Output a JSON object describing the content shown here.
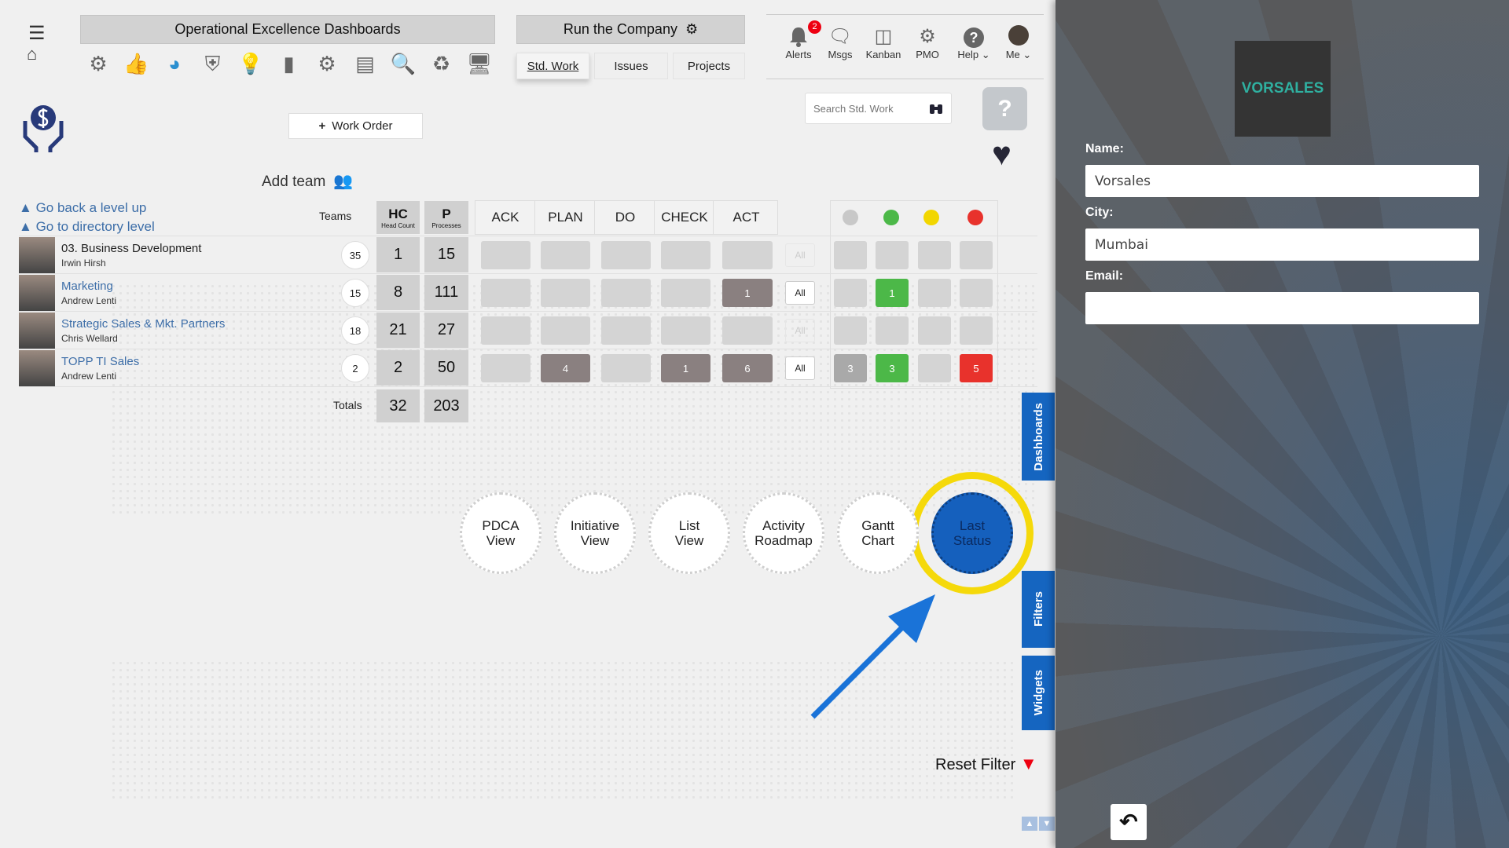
{
  "header": {
    "dashboards_title": "Operational Excellence Dashboards",
    "run_title": "Run the Company",
    "tabs": [
      {
        "label": "Std. Work",
        "active": true
      },
      {
        "label": "Issues"
      },
      {
        "label": "Projects"
      }
    ],
    "toolbar_icons": [
      "brain-gear-icon",
      "thumbs-up-icon",
      "pie-chart-icon",
      "shield-icon",
      "lightbulb-icon",
      "bar-chart-icon",
      "gear-chart-icon",
      "document-list-icon",
      "search-check-icon",
      "recycle-icon",
      "monitor-settings-icon"
    ],
    "nav": [
      {
        "label": "Alerts",
        "badge": "2",
        "icon": "bell-icon"
      },
      {
        "label": "Msgs",
        "icon": "message-icon"
      },
      {
        "label": "Kanban",
        "icon": "kanban-icon"
      },
      {
        "label": "PMO",
        "icon": "pmo-gear-icon"
      },
      {
        "label": "Help",
        "icon": "help-icon"
      },
      {
        "label": "Me",
        "icon": "avatar-icon"
      }
    ],
    "search_placeholder": "Search Std. Work"
  },
  "actions": {
    "work_order": "Work Order",
    "add_team": "Add team",
    "go_back": "Go back a level up",
    "go_directory": "Go to directory level",
    "reset_filter": "Reset Filter"
  },
  "table": {
    "teams_label": "Teams",
    "hc": "HC",
    "hc_sub": "Head Count",
    "p": "P",
    "p_sub": "Processes",
    "pdca": [
      "ACK",
      "PLAN",
      "DO",
      "CHECK",
      "ACT"
    ],
    "status_colors": [
      "#c8c8c8",
      "#4cb848",
      "#f2d600",
      "#e8322c"
    ],
    "all_label": "All",
    "rows": [
      {
        "name": "03. Business Development",
        "lead": "Irwin Hirsh",
        "teams": "35",
        "hc": "1",
        "p": "15",
        "pdca": [
          "",
          "",
          "",
          "",
          ""
        ],
        "status": [
          "",
          "",
          "",
          ""
        ],
        "link": false
      },
      {
        "name": "Marketing",
        "lead": "Andrew Lenti",
        "teams": "15",
        "hc": "8",
        "p": "111",
        "pdca": [
          "",
          "",
          "",
          "",
          "1"
        ],
        "status": [
          "",
          "1",
          "",
          ""
        ],
        "link": true
      },
      {
        "name": "Strategic Sales & Mkt. Partners",
        "lead": "Chris Wellard",
        "teams": "18",
        "hc": "21",
        "p": "27",
        "pdca": [
          "",
          "",
          "",
          "",
          ""
        ],
        "status": [
          "",
          "",
          "",
          ""
        ],
        "link": true
      },
      {
        "name": "TOPP TI Sales",
        "lead": "Andrew Lenti",
        "teams": "2",
        "hc": "2",
        "p": "50",
        "pdca": [
          "",
          "4",
          "",
          "1",
          "6"
        ],
        "status": [
          "3",
          "3",
          "",
          "5"
        ],
        "link": true
      }
    ],
    "totals_label": "Totals",
    "total_hc": "32",
    "total_p": "203"
  },
  "views": [
    [
      "PDCA",
      "View"
    ],
    [
      "Initiative",
      "View"
    ],
    [
      "List",
      "View"
    ],
    [
      "Activity",
      "Roadmap"
    ],
    [
      "Gantt",
      "Chart"
    ],
    [
      "Last",
      "Status"
    ]
  ],
  "active_view": "Last Status",
  "side_tabs": [
    "Dashboards",
    "Filters",
    "Widgets"
  ],
  "panel": {
    "logo_text": "VORSALES",
    "name_label": "Name:",
    "name_value": "Vorsales",
    "city_label": "City:",
    "city_value": "Mumbai",
    "email_label": "Email:",
    "email_value": ""
  },
  "colors": {
    "accent": "#1565c0",
    "highlight": "#f5d90a"
  }
}
